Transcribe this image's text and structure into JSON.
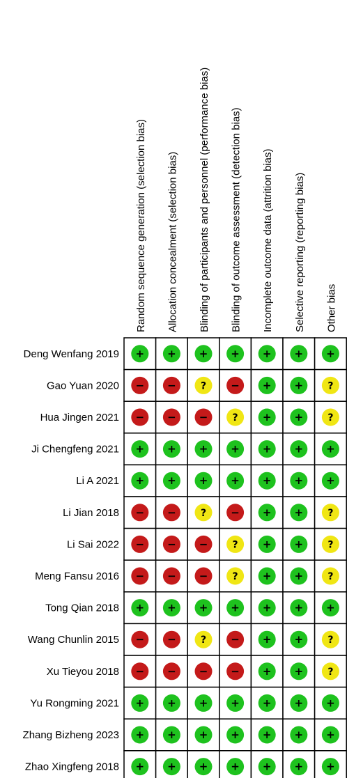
{
  "domains": [
    "Random sequence generation (selection bias)",
    "Allocation concealment (selection bias)",
    "Blinding of participants and personnel (performance bias)",
    "Blinding of outcome assessment (detection bias)",
    "Incomplete outcome data (attrition bias)",
    "Selective reporting (reporting bias)",
    "Other bias"
  ],
  "studies": [
    {
      "name": "Deng Wenfang 2019",
      "ratings": [
        "low",
        "low",
        "low",
        "low",
        "low",
        "low",
        "low"
      ]
    },
    {
      "name": "Gao Yuan 2020",
      "ratings": [
        "high",
        "high",
        "unclear",
        "high",
        "low",
        "low",
        "unclear"
      ]
    },
    {
      "name": "Hua Jingen 2021",
      "ratings": [
        "high",
        "high",
        "high",
        "unclear",
        "low",
        "low",
        "unclear"
      ]
    },
    {
      "name": "Ji Chengfeng 2021",
      "ratings": [
        "low",
        "low",
        "low",
        "low",
        "low",
        "low",
        "low"
      ]
    },
    {
      "name": "Li A 2021",
      "ratings": [
        "low",
        "low",
        "low",
        "low",
        "low",
        "low",
        "low"
      ]
    },
    {
      "name": "Li Jian 2018",
      "ratings": [
        "high",
        "high",
        "unclear",
        "high",
        "low",
        "low",
        "unclear"
      ]
    },
    {
      "name": "Li Sai 2022",
      "ratings": [
        "high",
        "high",
        "high",
        "unclear",
        "low",
        "low",
        "unclear"
      ]
    },
    {
      "name": "Meng Fansu 2016",
      "ratings": [
        "high",
        "high",
        "high",
        "unclear",
        "low",
        "low",
        "unclear"
      ]
    },
    {
      "name": "Tong Qian 2018",
      "ratings": [
        "low",
        "low",
        "low",
        "low",
        "low",
        "low",
        "low"
      ]
    },
    {
      "name": "Wang Chunlin 2015",
      "ratings": [
        "high",
        "high",
        "unclear",
        "high",
        "low",
        "low",
        "unclear"
      ]
    },
    {
      "name": "Xu Tieyou 2018",
      "ratings": [
        "high",
        "high",
        "high",
        "high",
        "low",
        "low",
        "unclear"
      ]
    },
    {
      "name": "Yu Rongming 2021",
      "ratings": [
        "low",
        "low",
        "low",
        "low",
        "low",
        "low",
        "low"
      ]
    },
    {
      "name": "Zhang Bizheng 2023",
      "ratings": [
        "low",
        "low",
        "low",
        "low",
        "low",
        "low",
        "low"
      ]
    },
    {
      "name": "Zhao Xingfeng 2018",
      "ratings": [
        "low",
        "low",
        "low",
        "low",
        "low",
        "low",
        "low"
      ]
    }
  ],
  "rating_styles": {
    "low": {
      "color": "#1ec21e",
      "symbol": "+"
    },
    "high": {
      "color": "#c41a1a",
      "symbol": "−"
    },
    "unclear": {
      "color": "#f0e614",
      "symbol": "?"
    }
  }
}
